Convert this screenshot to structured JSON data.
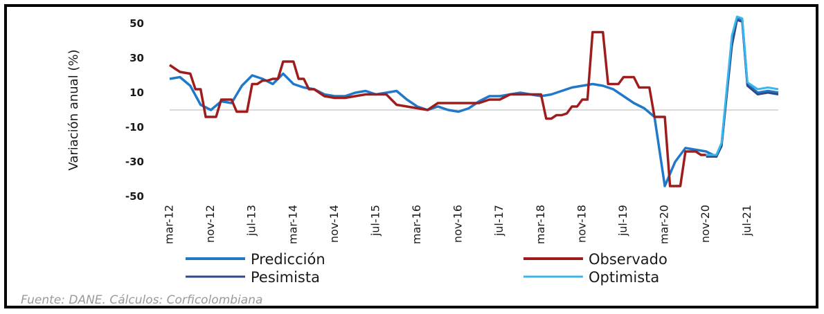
{
  "source_note": "Fuente: DANE. Cálculos: Corficolombiana",
  "colors": {
    "prediccion": "#1f78c8",
    "observado": "#9e1c1c",
    "pesimista": "#2e4a8a",
    "optimista": "#39b6ee",
    "zero_line": "#d9d9d9"
  },
  "chart_data": {
    "type": "line",
    "ylabel": "Variación anual (%)",
    "xlabel": "",
    "ylim": [
      -50,
      50
    ],
    "yticks": [
      50,
      30,
      10,
      -10,
      -30,
      -50
    ],
    "x_tick_labels": [
      "mar-12",
      "nov-12",
      "jul-13",
      "mar-14",
      "nov-14",
      "jul-15",
      "mar-16",
      "nov-16",
      "jul-17",
      "mar-18",
      "nov-18",
      "jul-19",
      "mar-20",
      "nov-20",
      "jul-21"
    ],
    "x_tick_months": [
      0,
      8,
      16,
      24,
      32,
      40,
      48,
      56,
      64,
      72,
      80,
      88,
      96,
      104,
      112
    ],
    "x_range_months": [
      0,
      118
    ],
    "grid": false,
    "legend_position": "bottom",
    "series": [
      {
        "name": "Predicción",
        "color_key": "prediccion",
        "x_months": [
          0,
          2,
          4,
          6,
          8,
          10,
          12,
          14,
          16,
          18,
          20,
          22,
          24,
          26,
          28,
          30,
          32,
          34,
          36,
          38,
          40,
          42,
          44,
          46,
          48,
          50,
          52,
          54,
          56,
          58,
          60,
          62,
          64,
          66,
          68,
          70,
          72,
          74,
          76,
          78,
          80,
          82,
          84,
          86,
          88,
          90,
          92,
          94,
          96,
          98,
          100,
          102,
          104,
          106,
          107,
          108,
          109,
          110,
          111,
          112,
          114,
          116,
          118
        ],
        "values": [
          18,
          19,
          14,
          3,
          0,
          5,
          4,
          14,
          20,
          18,
          15,
          21,
          15,
          13,
          12,
          9,
          8,
          8,
          10,
          11,
          9,
          10,
          11,
          6,
          2,
          0,
          2,
          0,
          -1,
          1,
          5,
          8,
          8,
          9,
          10,
          9,
          8,
          9,
          11,
          13,
          14,
          15,
          14,
          12,
          8,
          4,
          1,
          -4,
          -44,
          -30,
          -22,
          -23,
          -24,
          -27,
          -20,
          10,
          40,
          53,
          52,
          15,
          10,
          11,
          10
        ]
      },
      {
        "name": "Observado",
        "color_key": "observado",
        "x_months": [
          0,
          1,
          2,
          4,
          5,
          6,
          7,
          8,
          9,
          10,
          11,
          12,
          13,
          14,
          15,
          16,
          17,
          18,
          19,
          20,
          21,
          22,
          23,
          24,
          25,
          26,
          27,
          28,
          30,
          32,
          34,
          36,
          38,
          40,
          42,
          44,
          46,
          48,
          50,
          52,
          54,
          56,
          58,
          60,
          62,
          64,
          66,
          68,
          69,
          70,
          71,
          72,
          73,
          74,
          75,
          76,
          77,
          78,
          79,
          80,
          81,
          82,
          83,
          84,
          85,
          86,
          87,
          88,
          89,
          90,
          91,
          92,
          93,
          94,
          95,
          96,
          97,
          98,
          99,
          100,
          101,
          102,
          103,
          104
        ],
        "values": [
          26,
          24,
          22,
          21,
          12,
          12,
          -4,
          -4,
          -4,
          6,
          6,
          6,
          -1,
          -1,
          -1,
          15,
          15,
          17,
          17,
          18,
          18,
          28,
          28,
          28,
          18,
          18,
          12,
          12,
          8,
          7,
          7,
          8,
          9,
          9,
          9,
          3,
          2,
          1,
          0,
          4,
          4,
          4,
          4,
          4,
          6,
          6,
          9,
          9,
          9,
          9,
          9,
          9,
          -5,
          -5,
          -3,
          -3,
          -2,
          2,
          2,
          6,
          6,
          45,
          45,
          45,
          15,
          15,
          15,
          19,
          19,
          19,
          13,
          13,
          13,
          -4,
          -4,
          -4,
          -44,
          -44,
          -44,
          -24,
          -24,
          -24,
          -26,
          -26
        ]
      },
      {
        "name": "Pesimista",
        "color_key": "pesimista",
        "x_months": [
          104,
          106,
          107,
          108,
          109,
          110,
          111,
          112,
          114,
          116,
          118
        ],
        "values": [
          -27,
          -27,
          -21,
          8,
          37,
          52,
          51,
          14,
          9,
          10,
          9
        ]
      },
      {
        "name": "Optimista",
        "color_key": "optimista",
        "x_months": [
          104,
          106,
          107,
          108,
          109,
          110,
          111,
          112,
          114,
          116,
          118
        ],
        "values": [
          -26,
          -26,
          -19,
          12,
          43,
          54,
          53,
          16,
          12,
          13,
          12
        ]
      }
    ]
  }
}
